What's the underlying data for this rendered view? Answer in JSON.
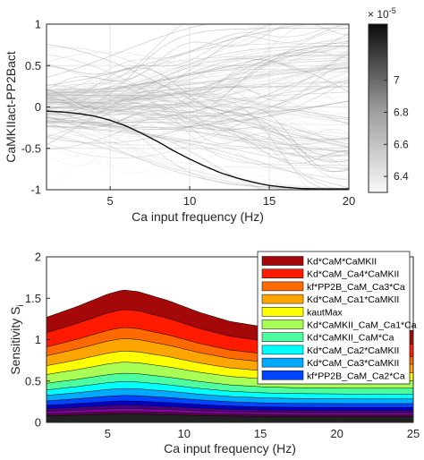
{
  "chart_data": [
    {
      "type": "line",
      "xlabel": "Ca input frequency (Hz)",
      "ylabel": "CaMKIIact-PP2Bact",
      "xlim": [
        1,
        20
      ],
      "ylim": [
        -1,
        1
      ],
      "xticks": [
        "5",
        "10",
        "15",
        "20"
      ],
      "yticks": [
        "-1",
        "-0.5",
        "0",
        "0.5",
        "1"
      ],
      "grid": true,
      "background_traces": "many gray sample curves colored by value",
      "highlight_series": {
        "x": [
          1,
          2,
          3,
          4,
          5,
          6,
          7,
          8,
          9,
          10,
          11,
          12,
          13,
          14,
          15,
          16,
          17,
          18,
          19,
          20
        ],
        "y": [
          -0.05,
          -0.06,
          -0.08,
          -0.11,
          -0.16,
          -0.23,
          -0.32,
          -0.42,
          -0.53,
          -0.63,
          -0.72,
          -0.8,
          -0.86,
          -0.91,
          -0.95,
          -0.97,
          -0.985,
          -0.99,
          -0.99,
          -0.99
        ]
      },
      "colorbar": {
        "exponent": "x 10^-5",
        "ticks": [
          "6.4",
          "6.6",
          "6.8",
          "7"
        ],
        "range": [
          6.3,
          7.35
        ],
        "colormap": "gray (light to dark)"
      }
    },
    {
      "type": "area",
      "xlabel": "Ca input frequency (Hz)",
      "ylabel": "Sensitivity S",
      "ylabel_sub": "i",
      "xlim": [
        1,
        25
      ],
      "ylim": [
        0,
        2
      ],
      "xticks": [
        "5",
        "10",
        "15",
        "20",
        "25"
      ],
      "yticks": [
        "0",
        "0.5",
        "1",
        "1.5",
        "2"
      ],
      "legend_position": "top-right",
      "x": [
        1,
        3,
        5,
        6,
        7,
        9,
        11,
        13,
        15,
        17,
        19,
        21,
        23,
        25
      ],
      "total": [
        1.27,
        1.4,
        1.55,
        1.6,
        1.58,
        1.47,
        1.33,
        1.22,
        1.16,
        1.13,
        1.12,
        1.11,
        1.11,
        1.11
      ],
      "layer_profile_tail": 0.6,
      "series": [
        {
          "name": "Kd*CaM*CaMKII",
          "color": "#a50808",
          "share": 0.14
        },
        {
          "name": "Kd*CaM_Ca4*CaMKII",
          "color": "#ff1a00",
          "share": 0.13
        },
        {
          "name": "kf*PP2B_CaM_Ca3*Ca",
          "color": "#ff6a00",
          "share": 0.08
        },
        {
          "name": "Kd*CaM_Ca1*CaMKII",
          "color": "#ffa500",
          "share": 0.09
        },
        {
          "name": "kautMax",
          "color": "#ffff00",
          "share": 0.08
        },
        {
          "name": "Kd*CaMKII_CaM_Ca1*Ca",
          "color": "#a8ff55",
          "share": 0.08
        },
        {
          "name": "Kd*CaMKII_CaM*Ca",
          "color": "#4dffa0",
          "share": 0.06
        },
        {
          "name": "Kd*CaM_Ca2*CaMKII",
          "color": "#00ffff",
          "share": 0.05
        },
        {
          "name": "Kd*CaM_Ca3*CaMKII",
          "color": "#00aaff",
          "share": 0.05
        },
        {
          "name": "kf*PP2B_CaM_Ca2*Ca",
          "color": "#0044ff",
          "share": 0.04
        }
      ],
      "unlabeled_layers": [
        {
          "color": "#0000c8",
          "share": 0.03
        },
        {
          "color": "#4b0082",
          "share": 0.025
        },
        {
          "color": "#8b00a8",
          "share": 0.02
        },
        {
          "color": "#5a0050",
          "share": 0.02
        },
        {
          "color": "#222222",
          "share": 0.06
        }
      ]
    }
  ]
}
